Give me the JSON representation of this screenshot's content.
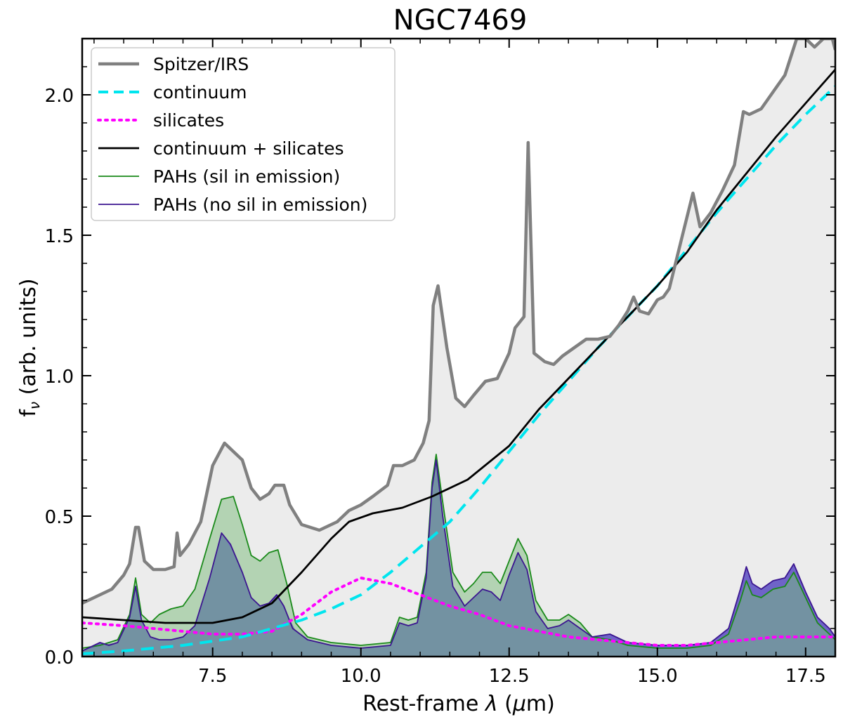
{
  "chart_data": {
    "type": "line",
    "title": "NGC7469",
    "xlabel": "Rest-frame λ (μm)",
    "ylabel": "fν (arb. units)",
    "xlim": [
      5.3,
      18.0
    ],
    "ylim": [
      0.0,
      2.2
    ],
    "x_ticks": [
      7.5,
      10.0,
      12.5,
      15.0,
      17.5
    ],
    "x_tick_labels": [
      "7.5",
      "10.0",
      "12.5",
      "15.0",
      "17.5"
    ],
    "y_ticks": [
      0.0,
      0.5,
      1.0,
      1.5,
      2.0
    ],
    "y_tick_labels": [
      "0.0",
      "0.5",
      "1.0",
      "1.5",
      "2.0"
    ],
    "legend": {
      "placement": "upper-left",
      "entries": [
        {
          "label": "Spitzer/IRS",
          "color": "#808080",
          "style": "solid-thick"
        },
        {
          "label": "continuum",
          "color": "#00e5ee",
          "style": "dashed"
        },
        {
          "label": "silicates",
          "color": "#ff00ff",
          "style": "dotted"
        },
        {
          "label": "continuum + silicates",
          "color": "#000000",
          "style": "solid"
        },
        {
          "label": "PAHs (sil in emission)",
          "color": "#1a8a1a",
          "style": "solid-thin"
        },
        {
          "label": "PAHs (no sil in emission)",
          "color": "#3b1590",
          "style": "solid-thin"
        }
      ]
    },
    "series": [
      {
        "name": "Spitzer/IRS",
        "color": "#808080",
        "fill": "#ececec",
        "points": [
          [
            5.3,
            0.19
          ],
          [
            5.5,
            0.21
          ],
          [
            5.8,
            0.24
          ],
          [
            6.0,
            0.29
          ],
          [
            6.1,
            0.33
          ],
          [
            6.2,
            0.46
          ],
          [
            6.25,
            0.46
          ],
          [
            6.35,
            0.34
          ],
          [
            6.5,
            0.31
          ],
          [
            6.7,
            0.31
          ],
          [
            6.85,
            0.32
          ],
          [
            6.9,
            0.44
          ],
          [
            6.95,
            0.36
          ],
          [
            7.1,
            0.4
          ],
          [
            7.3,
            0.48
          ],
          [
            7.5,
            0.68
          ],
          [
            7.7,
            0.76
          ],
          [
            7.85,
            0.73
          ],
          [
            8.0,
            0.7
          ],
          [
            8.15,
            0.6
          ],
          [
            8.3,
            0.56
          ],
          [
            8.45,
            0.58
          ],
          [
            8.55,
            0.61
          ],
          [
            8.7,
            0.61
          ],
          [
            8.8,
            0.54
          ],
          [
            9.0,
            0.47
          ],
          [
            9.3,
            0.45
          ],
          [
            9.6,
            0.48
          ],
          [
            9.8,
            0.52
          ],
          [
            10.0,
            0.54
          ],
          [
            10.2,
            0.57
          ],
          [
            10.45,
            0.61
          ],
          [
            10.55,
            0.68
          ],
          [
            10.7,
            0.68
          ],
          [
            10.9,
            0.7
          ],
          [
            11.05,
            0.76
          ],
          [
            11.15,
            0.84
          ],
          [
            11.22,
            1.25
          ],
          [
            11.3,
            1.32
          ],
          [
            11.45,
            1.1
          ],
          [
            11.6,
            0.92
          ],
          [
            11.75,
            0.89
          ],
          [
            11.9,
            0.93
          ],
          [
            12.1,
            0.98
          ],
          [
            12.3,
            0.99
          ],
          [
            12.5,
            1.08
          ],
          [
            12.6,
            1.17
          ],
          [
            12.75,
            1.21
          ],
          [
            12.82,
            1.83
          ],
          [
            12.92,
            1.08
          ],
          [
            13.1,
            1.05
          ],
          [
            13.25,
            1.04
          ],
          [
            13.4,
            1.07
          ],
          [
            13.6,
            1.1
          ],
          [
            13.8,
            1.13
          ],
          [
            14.0,
            1.13
          ],
          [
            14.2,
            1.14
          ],
          [
            14.35,
            1.18
          ],
          [
            14.5,
            1.23
          ],
          [
            14.6,
            1.28
          ],
          [
            14.7,
            1.23
          ],
          [
            14.85,
            1.22
          ],
          [
            15.0,
            1.27
          ],
          [
            15.1,
            1.28
          ],
          [
            15.2,
            1.31
          ],
          [
            15.4,
            1.48
          ],
          [
            15.6,
            1.65
          ],
          [
            15.72,
            1.53
          ],
          [
            15.9,
            1.58
          ],
          [
            16.1,
            1.66
          ],
          [
            16.3,
            1.75
          ],
          [
            16.45,
            1.94
          ],
          [
            16.55,
            1.93
          ],
          [
            16.75,
            1.95
          ],
          [
            16.95,
            2.01
          ],
          [
            17.15,
            2.07
          ],
          [
            17.35,
            2.2
          ],
          [
            17.5,
            2.2
          ],
          [
            17.65,
            2.17
          ],
          [
            17.8,
            2.2
          ],
          [
            17.95,
            2.2
          ],
          [
            18.0,
            2.16
          ]
        ]
      },
      {
        "name": "continuum",
        "color": "#00e5ee",
        "points": [
          [
            5.3,
            0.01
          ],
          [
            6.0,
            0.02
          ],
          [
            7.0,
            0.04
          ],
          [
            8.0,
            0.07
          ],
          [
            8.5,
            0.1
          ],
          [
            9.0,
            0.13
          ],
          [
            9.5,
            0.17
          ],
          [
            10.0,
            0.22
          ],
          [
            10.5,
            0.3
          ],
          [
            11.0,
            0.39
          ],
          [
            11.5,
            0.48
          ],
          [
            12.0,
            0.6
          ],
          [
            12.5,
            0.73
          ],
          [
            13.0,
            0.86
          ],
          [
            13.5,
            0.98
          ],
          [
            14.0,
            1.1
          ],
          [
            14.5,
            1.21
          ],
          [
            15.0,
            1.32
          ],
          [
            15.5,
            1.45
          ],
          [
            16.0,
            1.58
          ],
          [
            16.5,
            1.7
          ],
          [
            17.0,
            1.82
          ],
          [
            17.5,
            1.93
          ],
          [
            18.0,
            2.03
          ]
        ]
      },
      {
        "name": "silicates",
        "color": "#ff00ff",
        "points": [
          [
            5.3,
            0.12
          ],
          [
            6.0,
            0.11
          ],
          [
            7.0,
            0.09
          ],
          [
            7.5,
            0.08
          ],
          [
            8.0,
            0.08
          ],
          [
            8.5,
            0.09
          ],
          [
            9.0,
            0.15
          ],
          [
            9.5,
            0.23
          ],
          [
            10.0,
            0.28
          ],
          [
            10.5,
            0.26
          ],
          [
            11.0,
            0.22
          ],
          [
            11.5,
            0.18
          ],
          [
            12.0,
            0.15
          ],
          [
            12.5,
            0.11
          ],
          [
            13.0,
            0.09
          ],
          [
            13.5,
            0.07
          ],
          [
            14.0,
            0.06
          ],
          [
            14.5,
            0.05
          ],
          [
            15.0,
            0.04
          ],
          [
            15.5,
            0.04
          ],
          [
            16.0,
            0.05
          ],
          [
            16.5,
            0.06
          ],
          [
            17.0,
            0.07
          ],
          [
            17.5,
            0.07
          ],
          [
            18.0,
            0.07
          ]
        ]
      },
      {
        "name": "continuum + silicates",
        "color": "#000000",
        "points": [
          [
            5.3,
            0.14
          ],
          [
            6.0,
            0.13
          ],
          [
            6.7,
            0.12
          ],
          [
            7.5,
            0.12
          ],
          [
            8.0,
            0.14
          ],
          [
            8.5,
            0.19
          ],
          [
            9.0,
            0.3
          ],
          [
            9.5,
            0.42
          ],
          [
            9.8,
            0.48
          ],
          [
            10.2,
            0.51
          ],
          [
            10.7,
            0.53
          ],
          [
            11.2,
            0.57
          ],
          [
            11.8,
            0.63
          ],
          [
            12.5,
            0.75
          ],
          [
            13.0,
            0.88
          ],
          [
            13.5,
            0.99
          ],
          [
            14.0,
            1.1
          ],
          [
            14.5,
            1.21
          ],
          [
            15.0,
            1.32
          ],
          [
            15.5,
            1.44
          ],
          [
            16.0,
            1.59
          ],
          [
            16.5,
            1.72
          ],
          [
            17.0,
            1.85
          ],
          [
            17.5,
            1.97
          ],
          [
            18.0,
            2.09
          ]
        ]
      },
      {
        "name": "PAHs (sil in emission)",
        "color": "#1a8a1a",
        "fill": "#b3d3b3",
        "points": [
          [
            5.3,
            0.03
          ],
          [
            5.6,
            0.04
          ],
          [
            5.9,
            0.06
          ],
          [
            6.1,
            0.15
          ],
          [
            6.2,
            0.28
          ],
          [
            6.3,
            0.15
          ],
          [
            6.45,
            0.12
          ],
          [
            6.6,
            0.15
          ],
          [
            6.8,
            0.17
          ],
          [
            7.0,
            0.18
          ],
          [
            7.2,
            0.24
          ],
          [
            7.45,
            0.42
          ],
          [
            7.65,
            0.56
          ],
          [
            7.85,
            0.57
          ],
          [
            8.0,
            0.47
          ],
          [
            8.15,
            0.36
          ],
          [
            8.3,
            0.34
          ],
          [
            8.45,
            0.37
          ],
          [
            8.6,
            0.38
          ],
          [
            8.75,
            0.26
          ],
          [
            8.9,
            0.12
          ],
          [
            9.1,
            0.07
          ],
          [
            9.5,
            0.05
          ],
          [
            10.0,
            0.04
          ],
          [
            10.5,
            0.05
          ],
          [
            10.65,
            0.14
          ],
          [
            10.8,
            0.13
          ],
          [
            10.95,
            0.14
          ],
          [
            11.1,
            0.3
          ],
          [
            11.2,
            0.62
          ],
          [
            11.27,
            0.72
          ],
          [
            11.38,
            0.55
          ],
          [
            11.55,
            0.3
          ],
          [
            11.75,
            0.23
          ],
          [
            11.9,
            0.26
          ],
          [
            12.05,
            0.3
          ],
          [
            12.2,
            0.3
          ],
          [
            12.35,
            0.26
          ],
          [
            12.5,
            0.34
          ],
          [
            12.65,
            0.42
          ],
          [
            12.8,
            0.36
          ],
          [
            12.95,
            0.2
          ],
          [
            13.15,
            0.13
          ],
          [
            13.35,
            0.13
          ],
          [
            13.5,
            0.15
          ],
          [
            13.7,
            0.12
          ],
          [
            13.9,
            0.07
          ],
          [
            14.2,
            0.06
          ],
          [
            14.5,
            0.04
          ],
          [
            15.0,
            0.03
          ],
          [
            15.5,
            0.03
          ],
          [
            15.9,
            0.04
          ],
          [
            16.2,
            0.08
          ],
          [
            16.4,
            0.2
          ],
          [
            16.5,
            0.27
          ],
          [
            16.6,
            0.22
          ],
          [
            16.75,
            0.21
          ],
          [
            16.95,
            0.24
          ],
          [
            17.15,
            0.25
          ],
          [
            17.3,
            0.3
          ],
          [
            17.5,
            0.21
          ],
          [
            17.7,
            0.12
          ],
          [
            17.9,
            0.08
          ],
          [
            18.0,
            0.06
          ]
        ]
      },
      {
        "name": "PAHs (no sil in emission)",
        "color": "#3b1590",
        "fill": "#6f64c8",
        "points": [
          [
            5.3,
            0.02
          ],
          [
            5.5,
            0.04
          ],
          [
            5.6,
            0.05
          ],
          [
            5.75,
            0.04
          ],
          [
            5.9,
            0.05
          ],
          [
            6.1,
            0.14
          ],
          [
            6.2,
            0.25
          ],
          [
            6.3,
            0.13
          ],
          [
            6.45,
            0.07
          ],
          [
            6.6,
            0.06
          ],
          [
            6.8,
            0.06
          ],
          [
            7.0,
            0.07
          ],
          [
            7.2,
            0.11
          ],
          [
            7.45,
            0.28
          ],
          [
            7.65,
            0.44
          ],
          [
            7.8,
            0.4
          ],
          [
            8.0,
            0.3
          ],
          [
            8.15,
            0.21
          ],
          [
            8.3,
            0.18
          ],
          [
            8.45,
            0.19
          ],
          [
            8.58,
            0.22
          ],
          [
            8.7,
            0.18
          ],
          [
            8.85,
            0.1
          ],
          [
            9.1,
            0.06
          ],
          [
            9.5,
            0.04
          ],
          [
            10.0,
            0.03
          ],
          [
            10.5,
            0.04
          ],
          [
            10.65,
            0.12
          ],
          [
            10.8,
            0.11
          ],
          [
            10.95,
            0.12
          ],
          [
            11.1,
            0.28
          ],
          [
            11.2,
            0.6
          ],
          [
            11.27,
            0.7
          ],
          [
            11.38,
            0.5
          ],
          [
            11.55,
            0.25
          ],
          [
            11.75,
            0.18
          ],
          [
            11.9,
            0.21
          ],
          [
            12.05,
            0.24
          ],
          [
            12.2,
            0.23
          ],
          [
            12.35,
            0.2
          ],
          [
            12.5,
            0.29
          ],
          [
            12.65,
            0.37
          ],
          [
            12.8,
            0.31
          ],
          [
            12.95,
            0.16
          ],
          [
            13.15,
            0.1
          ],
          [
            13.35,
            0.11
          ],
          [
            13.5,
            0.13
          ],
          [
            13.7,
            0.1
          ],
          [
            13.9,
            0.07
          ],
          [
            14.2,
            0.08
          ],
          [
            14.5,
            0.05
          ],
          [
            15.0,
            0.04
          ],
          [
            15.5,
            0.04
          ],
          [
            15.9,
            0.05
          ],
          [
            16.2,
            0.1
          ],
          [
            16.4,
            0.24
          ],
          [
            16.5,
            0.32
          ],
          [
            16.6,
            0.26
          ],
          [
            16.75,
            0.24
          ],
          [
            16.95,
            0.27
          ],
          [
            17.15,
            0.28
          ],
          [
            17.3,
            0.33
          ],
          [
            17.5,
            0.23
          ],
          [
            17.7,
            0.14
          ],
          [
            17.9,
            0.1
          ],
          [
            18.0,
            0.07
          ]
        ]
      }
    ]
  }
}
